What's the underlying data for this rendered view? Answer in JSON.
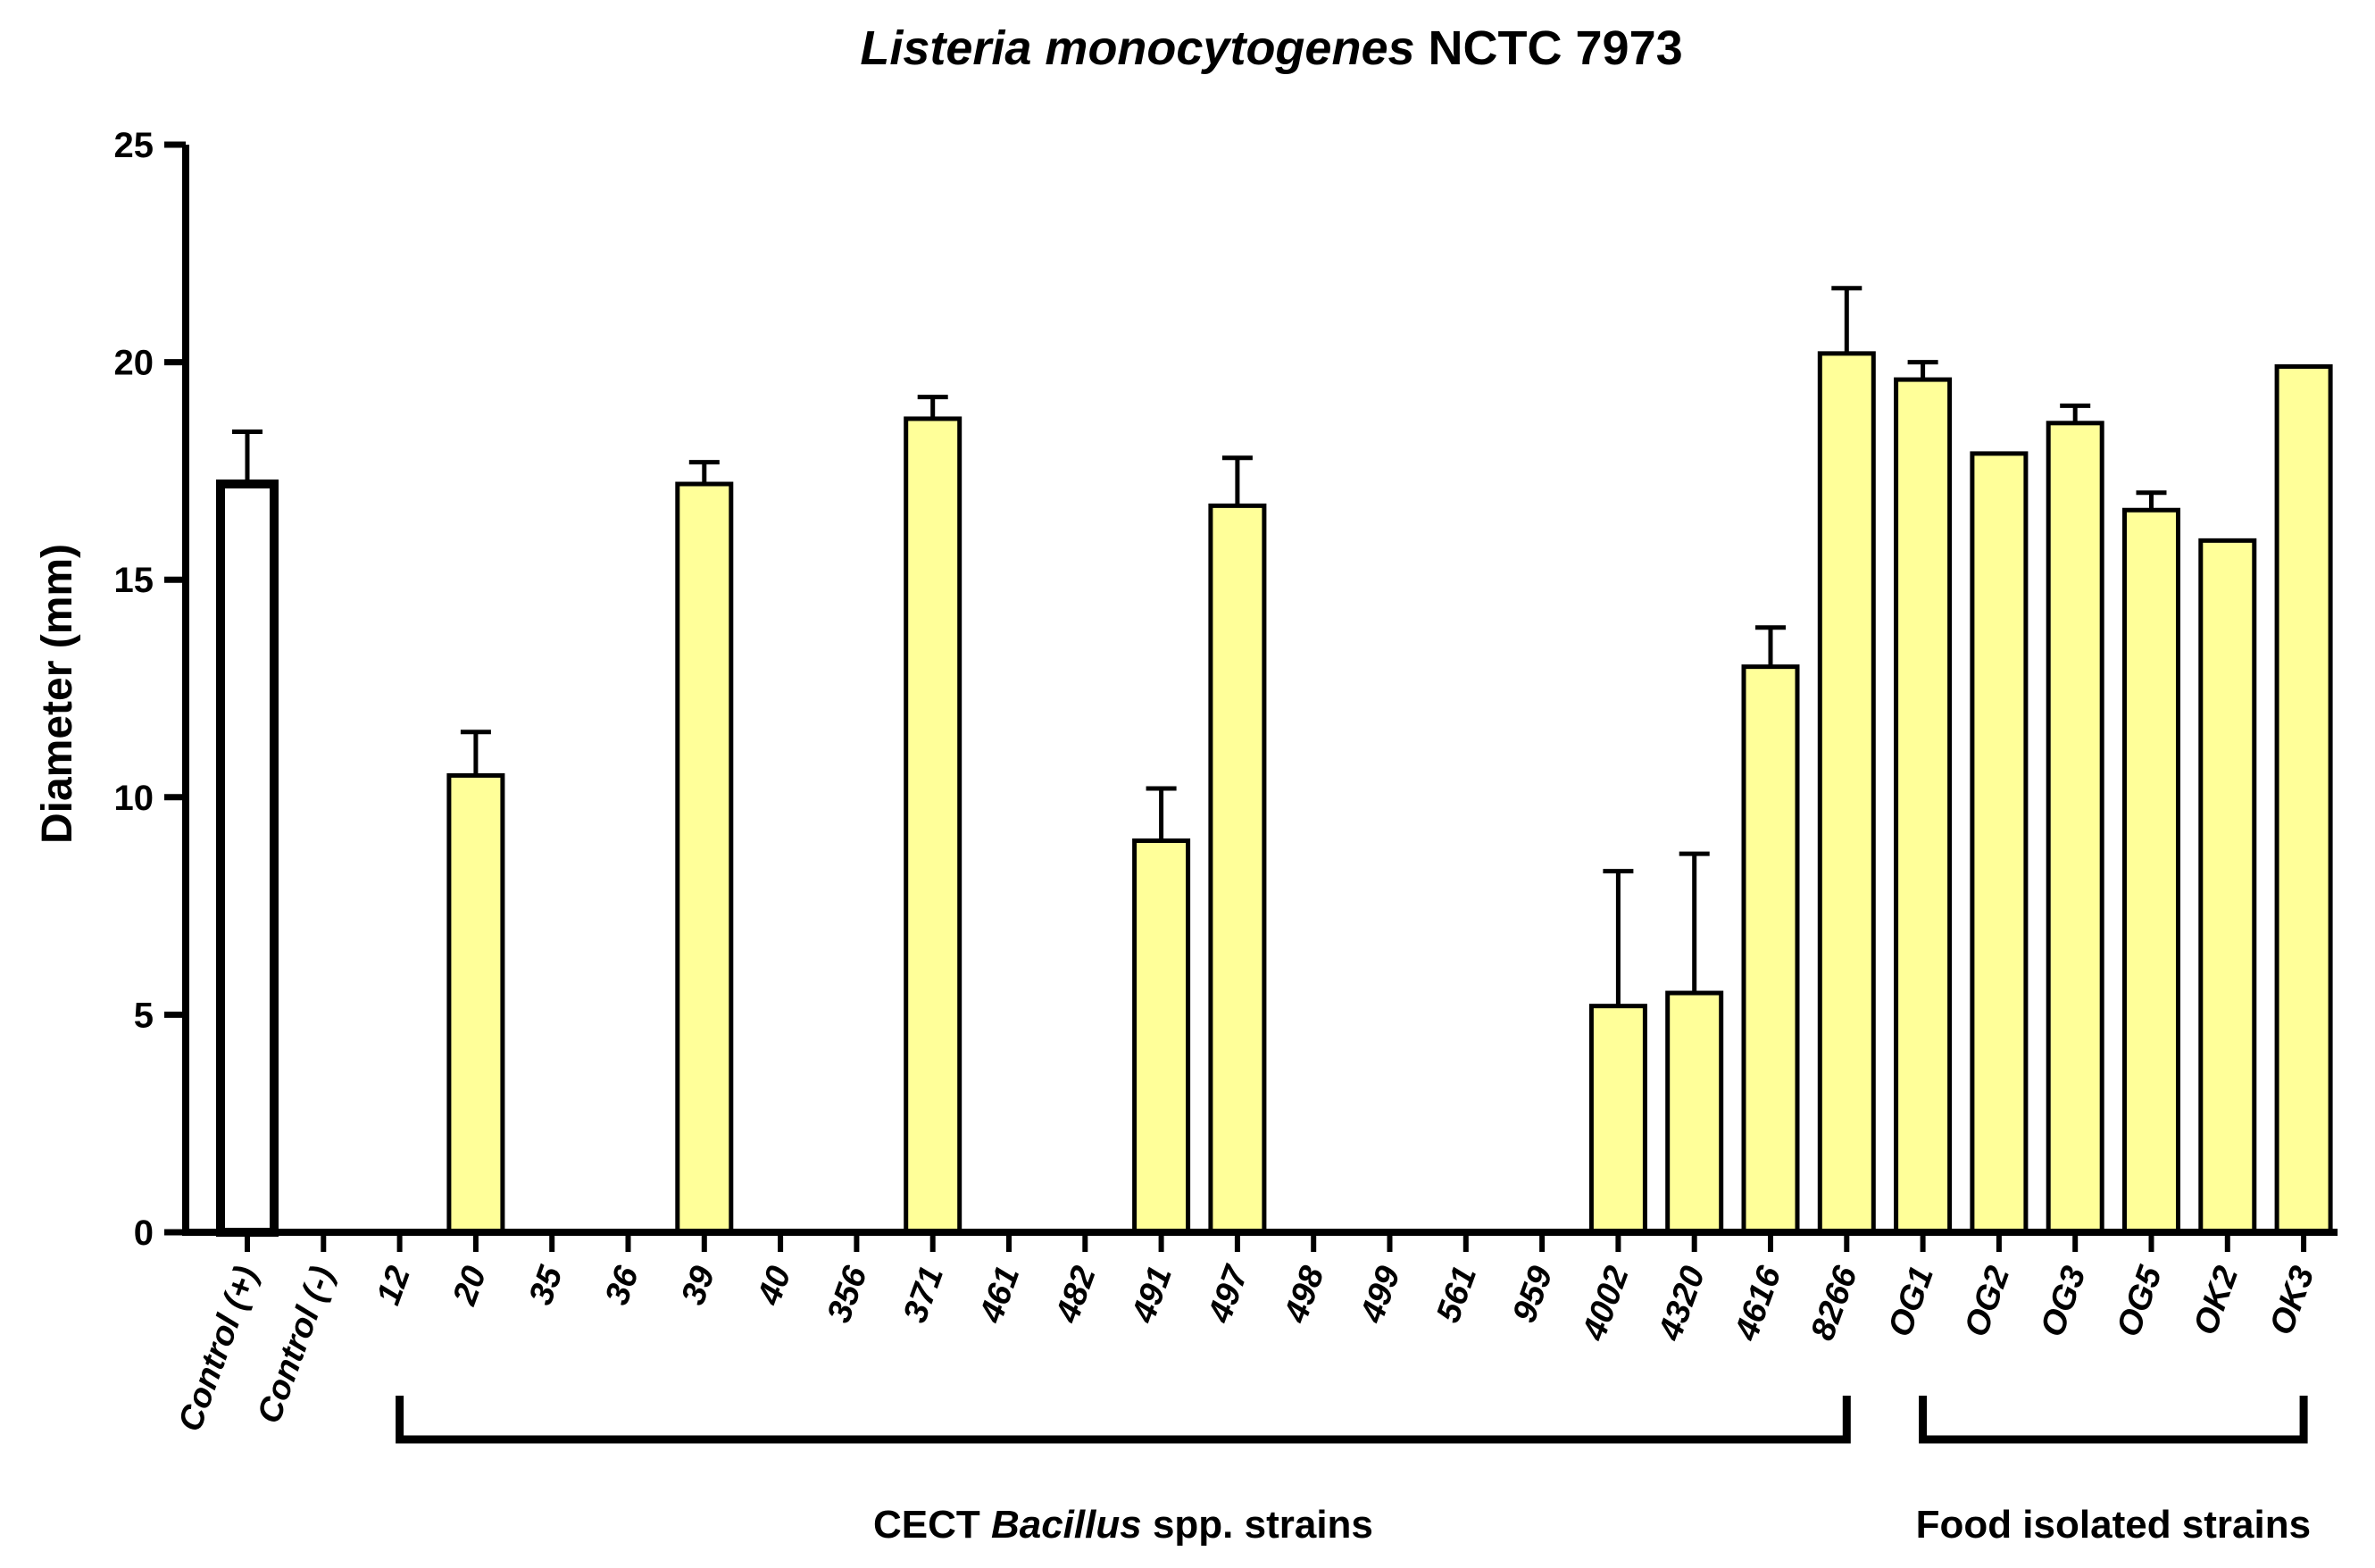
{
  "colors": {
    "bar_fill": "#ffff99",
    "control_fill": "#ffffff",
    "stroke": "#000000"
  },
  "chart_data": {
    "type": "bar",
    "title": {
      "italic": "Listeria monocytogenes",
      "normal": " NCTC 7973"
    },
    "xlabel": "",
    "ylabel": "Diameter (mm)",
    "ylim": [
      0,
      25
    ],
    "yticks": [
      0,
      5,
      10,
      15,
      20,
      25
    ],
    "categories": [
      "Control (+)",
      "Control (-)",
      "12",
      "20",
      "35",
      "36",
      "39",
      "40",
      "356",
      "371",
      "461",
      "482",
      "491",
      "497",
      "498",
      "499",
      "561",
      "959",
      "4002",
      "4320",
      "4616",
      "8266",
      "OG1",
      "OG2",
      "OG3",
      "OG5",
      "OK2",
      "OK3"
    ],
    "values": [
      17.2,
      0,
      0,
      10.5,
      0,
      0,
      17.2,
      0,
      0,
      18.7,
      0,
      0,
      9.0,
      16.7,
      0,
      0,
      0,
      0,
      5.2,
      5.5,
      13.0,
      20.2,
      19.6,
      17.9,
      18.6,
      16.6,
      15.9,
      19.9
    ],
    "errors": [
      1.2,
      0,
      0,
      1.0,
      0,
      0,
      0.5,
      0,
      0,
      0.5,
      0,
      0,
      1.2,
      1.1,
      0,
      0,
      0,
      0,
      3.1,
      3.2,
      0.9,
      1.5,
      0.4,
      0,
      0.4,
      0.4,
      0,
      0
    ],
    "bar_styles": [
      "control",
      "control",
      "sample",
      "sample",
      "sample",
      "sample",
      "sample",
      "sample",
      "sample",
      "sample",
      "sample",
      "sample",
      "sample",
      "sample",
      "sample",
      "sample",
      "sample",
      "sample",
      "sample",
      "sample",
      "sample",
      "sample",
      "sample",
      "sample",
      "sample",
      "sample",
      "sample",
      "sample"
    ],
    "groups": [
      {
        "label_before": "CECT ",
        "label_italic": "Bacillus",
        "label_after": " spp. strains",
        "start": "12",
        "end": "8266"
      },
      {
        "label_before": "Food isolated strains",
        "label_italic": "",
        "label_after": "",
        "start": "OG1",
        "end": "OK3"
      }
    ]
  }
}
